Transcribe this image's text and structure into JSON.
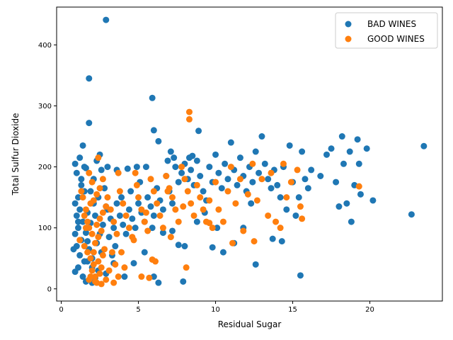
{
  "chart_data": {
    "type": "scatter",
    "title": "",
    "xlabel": "Residual Sugar",
    "ylabel": "Total Sulfur Dioxide",
    "xlim": [
      -0.3,
      24.7
    ],
    "ylim": [
      -20,
      462
    ],
    "x_ticks": [
      0,
      5,
      10,
      15,
      20
    ],
    "y_ticks": [
      0,
      100,
      200,
      300,
      400
    ],
    "grid": false,
    "legend_position": "top-right",
    "series": [
      {
        "name": "BAD WINES",
        "color": "#1f77b4",
        "points": [
          [
            2.9,
            441
          ],
          [
            1.8,
            345
          ],
          [
            5.9,
            313
          ],
          [
            1.8,
            272
          ],
          [
            6.0,
            260
          ],
          [
            8.9,
            259
          ],
          [
            6.3,
            242
          ],
          [
            0.9,
            205
          ],
          [
            1.2,
            215
          ],
          [
            1.4,
            235
          ],
          [
            1.6,
            198
          ],
          [
            1.0,
            190
          ],
          [
            1.3,
            170
          ],
          [
            1.5,
            160
          ],
          [
            1.1,
            150
          ],
          [
            0.9,
            140
          ],
          [
            1.2,
            130
          ],
          [
            1.0,
            120
          ],
          [
            1.4,
            110
          ],
          [
            1.1,
            100
          ],
          [
            0.9,
            90
          ],
          [
            1.3,
            80
          ],
          [
            1.0,
            70
          ],
          [
            0.8,
            65
          ],
          [
            1.2,
            55
          ],
          [
            1.5,
            45
          ],
          [
            1.1,
            35
          ],
          [
            0.9,
            28
          ],
          [
            1.4,
            20
          ],
          [
            1.6,
            12
          ],
          [
            2.0,
            10
          ],
          [
            2.2,
            18
          ],
          [
            2.4,
            30
          ],
          [
            2.0,
            50
          ],
          [
            2.6,
            60
          ],
          [
            2.3,
            75
          ],
          [
            2.5,
            90
          ],
          [
            2.7,
            105
          ],
          [
            2.2,
            120
          ],
          [
            2.9,
            135
          ],
          [
            2.4,
            150
          ],
          [
            2.8,
            165
          ],
          [
            2.1,
            180
          ],
          [
            2.6,
            195
          ],
          [
            2.3,
            210
          ],
          [
            2.5,
            220
          ],
          [
            3.0,
            130
          ],
          [
            3.2,
            115
          ],
          [
            3.4,
            100
          ],
          [
            3.1,
            85
          ],
          [
            3.5,
            70
          ],
          [
            3.3,
            55
          ],
          [
            3.6,
            140
          ],
          [
            3.8,
            120
          ],
          [
            4.0,
            105
          ],
          [
            4.2,
            90
          ],
          [
            3.9,
            150
          ],
          [
            4.4,
            130
          ],
          [
            4.6,
            115
          ],
          [
            4.8,
            100
          ],
          [
            4.5,
            160
          ],
          [
            5.0,
            140
          ],
          [
            5.2,
            125
          ],
          [
            5.4,
            110
          ],
          [
            5.1,
            175
          ],
          [
            5.6,
            150
          ],
          [
            5.8,
            135
          ],
          [
            6.0,
            120
          ],
          [
            5.5,
            200
          ],
          [
            6.2,
            165
          ],
          [
            6.4,
            145
          ],
          [
            6.6,
            130
          ],
          [
            6.8,
            185
          ],
          [
            7.0,
            160
          ],
          [
            7.2,
            140
          ],
          [
            7.4,
            200
          ],
          [
            7.6,
            175
          ],
          [
            7.8,
            190
          ],
          [
            8.0,
            205
          ],
          [
            8.2,
            180
          ],
          [
            8.4,
            195
          ],
          [
            8.6,
            170
          ],
          [
            8.8,
            210
          ],
          [
            9.0,
            185
          ],
          [
            9.2,
            160
          ],
          [
            9.4,
            145
          ],
          [
            9.6,
            200
          ],
          [
            9.8,
            175
          ],
          [
            10.0,
            220
          ],
          [
            10.2,
            190
          ],
          [
            10.4,
            165
          ],
          [
            10.6,
            205
          ],
          [
            10.8,
            180
          ],
          [
            11.0,
            240
          ],
          [
            11.2,
            195
          ],
          [
            11.4,
            170
          ],
          [
            11.6,
            215
          ],
          [
            11.8,
            185
          ],
          [
            12.0,
            160
          ],
          [
            12.2,
            200
          ],
          [
            12.4,
            175
          ],
          [
            12.6,
            225
          ],
          [
            12.8,
            190
          ],
          [
            13.0,
            250
          ],
          [
            13.2,
            205
          ],
          [
            13.4,
            180
          ],
          [
            13.6,
            165
          ],
          [
            13.8,
            195
          ],
          [
            14.0,
            170
          ],
          [
            14.2,
            150
          ],
          [
            14.4,
            200
          ],
          [
            14.6,
            130
          ],
          [
            14.8,
            235
          ],
          [
            15.0,
            175
          ],
          [
            15.2,
            120
          ],
          [
            15.4,
            150
          ],
          [
            15.6,
            225
          ],
          [
            15.8,
            180
          ],
          [
            16.0,
            165
          ],
          [
            16.2,
            195
          ],
          [
            16.8,
            185
          ],
          [
            17.2,
            220
          ],
          [
            17.5,
            230
          ],
          [
            17.8,
            175
          ],
          [
            18.0,
            135
          ],
          [
            18.2,
            250
          ],
          [
            18.3,
            205
          ],
          [
            18.5,
            140
          ],
          [
            18.7,
            225
          ],
          [
            18.8,
            110
          ],
          [
            19.0,
            170
          ],
          [
            19.2,
            245
          ],
          [
            19.3,
            205
          ],
          [
            19.4,
            155
          ],
          [
            19.8,
            230
          ],
          [
            20.2,
            145
          ],
          [
            22.7,
            122
          ],
          [
            23.5,
            234
          ],
          [
            15.5,
            22
          ],
          [
            7.9,
            12
          ],
          [
            6.3,
            10
          ],
          [
            12.6,
            40
          ],
          [
            2.9,
            25
          ],
          [
            3.4,
            42
          ],
          [
            4.1,
            20
          ],
          [
            9.8,
            68
          ],
          [
            10.5,
            60
          ],
          [
            11.2,
            75
          ],
          [
            7.6,
            72
          ],
          [
            4.7,
            42
          ],
          [
            5.4,
            60
          ],
          [
            6.6,
            92
          ],
          [
            8.8,
            110
          ],
          [
            10.1,
            100
          ],
          [
            13.7,
            82
          ],
          [
            14.3,
            78
          ],
          [
            11.8,
            100
          ],
          [
            12.3,
            140
          ],
          [
            9.3,
            125
          ],
          [
            6.0,
            20
          ],
          [
            8.0,
            70
          ],
          [
            7.2,
            95
          ],
          [
            5.9,
            100
          ],
          [
            6.9,
            210
          ],
          [
            7.3,
            215
          ],
          [
            8.3,
            215
          ],
          [
            8.5,
            218
          ],
          [
            7.1,
            225
          ],
          [
            4.3,
            197
          ],
          [
            4.9,
            200
          ],
          [
            3.0,
            200
          ],
          [
            3.6,
            195
          ],
          [
            1.9,
            160
          ],
          [
            2.1,
            140
          ],
          [
            1.7,
            125
          ],
          [
            1.9,
            108
          ],
          [
            1.6,
            92
          ],
          [
            1.7,
            78
          ],
          [
            1.8,
            65
          ],
          [
            1.5,
            200
          ],
          [
            1.3,
            180
          ],
          [
            1.1,
            110
          ],
          [
            1.7,
            45
          ],
          [
            2.0,
            35
          ]
        ]
      },
      {
        "name": "GOOD WINES",
        "color": "#ff7f0e",
        "points": [
          [
            1.5,
            120
          ],
          [
            1.6,
            130
          ],
          [
            1.7,
            110
          ],
          [
            1.8,
            100
          ],
          [
            1.9,
            140
          ],
          [
            2.0,
            90
          ],
          [
            1.4,
            150
          ],
          [
            1.3,
            160
          ],
          [
            1.2,
            80
          ],
          [
            1.5,
            70
          ],
          [
            1.7,
            60
          ],
          [
            1.9,
            50
          ],
          [
            2.1,
            40
          ],
          [
            2.0,
            30
          ],
          [
            2.2,
            20
          ],
          [
            1.8,
            15
          ],
          [
            2.3,
            10
          ],
          [
            2.5,
            25
          ],
          [
            2.6,
            35
          ],
          [
            2.4,
            45
          ],
          [
            2.7,
            55
          ],
          [
            2.8,
            65
          ],
          [
            2.2,
            75
          ],
          [
            2.4,
            85
          ],
          [
            2.6,
            95
          ],
          [
            2.3,
            105
          ],
          [
            2.5,
            115
          ],
          [
            2.7,
            125
          ],
          [
            2.9,
            135
          ],
          [
            2.1,
            145
          ],
          [
            2.3,
            155
          ],
          [
            2.5,
            165
          ],
          [
            2.0,
            175
          ],
          [
            1.8,
            190
          ],
          [
            2.4,
            215
          ],
          [
            2.7,
            180
          ],
          [
            3.0,
            150
          ],
          [
            3.2,
            130
          ],
          [
            3.4,
            110
          ],
          [
            3.6,
            90
          ],
          [
            3.3,
            60
          ],
          [
            3.5,
            40
          ],
          [
            3.7,
            20
          ],
          [
            3.4,
            10
          ],
          [
            3.8,
            160
          ],
          [
            3.7,
            190
          ],
          [
            4.0,
            140
          ],
          [
            4.2,
            120
          ],
          [
            4.4,
            100
          ],
          [
            4.6,
            85
          ],
          [
            4.1,
            35
          ],
          [
            4.8,
            190
          ],
          [
            4.9,
            170
          ],
          [
            5.0,
            150
          ],
          [
            5.2,
            130
          ],
          [
            5.4,
            110
          ],
          [
            5.6,
            95
          ],
          [
            5.8,
            180
          ],
          [
            5.2,
            20
          ],
          [
            5.7,
            18
          ],
          [
            6.0,
            160
          ],
          [
            6.2,
            140
          ],
          [
            6.4,
            120
          ],
          [
            6.6,
            100
          ],
          [
            6.1,
            45
          ],
          [
            5.9,
            48
          ],
          [
            6.8,
            185
          ],
          [
            7.0,
            165
          ],
          [
            7.2,
            150
          ],
          [
            7.4,
            130
          ],
          [
            7.6,
            110
          ],
          [
            7.1,
            85
          ],
          [
            7.8,
            200
          ],
          [
            8.0,
            180
          ],
          [
            8.2,
            160
          ],
          [
            8.4,
            140
          ],
          [
            8.6,
            120
          ],
          [
            8.1,
            35
          ],
          [
            8.3,
            290
          ],
          [
            8.3,
            278
          ],
          [
            8.8,
            170
          ],
          [
            9.0,
            150
          ],
          [
            9.2,
            130
          ],
          [
            9.4,
            110
          ],
          [
            9.6,
            145
          ],
          [
            9.8,
            100
          ],
          [
            10.0,
            175
          ],
          [
            10.2,
            130
          ],
          [
            10.5,
            110
          ],
          [
            10.8,
            160
          ],
          [
            11.0,
            200
          ],
          [
            11.3,
            140
          ],
          [
            11.6,
            180
          ],
          [
            11.8,
            95
          ],
          [
            12.1,
            155
          ],
          [
            12.4,
            205
          ],
          [
            12.7,
            145
          ],
          [
            13.0,
            180
          ],
          [
            13.4,
            120
          ],
          [
            13.6,
            190
          ],
          [
            13.9,
            110
          ],
          [
            14.2,
            100
          ],
          [
            14.4,
            205
          ],
          [
            14.6,
            150
          ],
          [
            14.9,
            175
          ],
          [
            15.3,
            195
          ],
          [
            15.5,
            135
          ],
          [
            15.6,
            115
          ],
          [
            19.3,
            168
          ],
          [
            12.5,
            78
          ],
          [
            11.1,
            75
          ],
          [
            9.6,
            108
          ],
          [
            7.9,
            135
          ],
          [
            6.9,
            160
          ],
          [
            5.5,
            125
          ],
          [
            4.7,
            80
          ],
          [
            3.9,
            60
          ],
          [
            3.1,
            30
          ],
          [
            2.9,
            15
          ],
          [
            2.6,
            8
          ],
          [
            2.2,
            12
          ],
          [
            1.9,
            20
          ],
          [
            2.1,
            60
          ],
          [
            1.6,
            100
          ]
        ]
      }
    ]
  }
}
